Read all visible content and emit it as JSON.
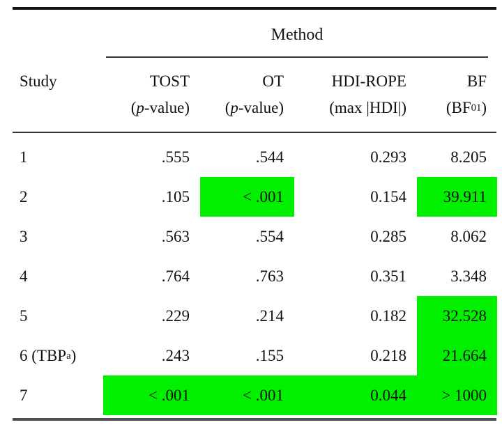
{
  "colors": {
    "highlight_green": "#00f000",
    "text": "#111111"
  },
  "table": {
    "span_header": "Method",
    "columns": {
      "study": {
        "label": "Study"
      },
      "tost": {
        "label": "TOST",
        "sub_pre": "(",
        "sub_it": "p",
        "sub_post": "-value)"
      },
      "ot": {
        "label": "OT",
        "sub_pre": "(",
        "sub_it": "p",
        "sub_post": "-value)"
      },
      "hdi": {
        "label": "HDI-ROPE",
        "sub": "(max |HDI|)"
      },
      "bf": {
        "label": "BF",
        "sub_pre": "(BF",
        "sub_sub": "01",
        "sub_post": ")"
      }
    },
    "rows": [
      {
        "study": "1",
        "tost": ".555",
        "ot": ".544",
        "hdi": "0.293",
        "bf": "8.205",
        "hl": []
      },
      {
        "study": "2",
        "tost": ".105",
        "ot": "< .001",
        "hdi": "0.154",
        "bf": "39.911",
        "hl": [
          "ot",
          "bf"
        ]
      },
      {
        "study": "3",
        "tost": ".563",
        "ot": ".554",
        "hdi": "0.285",
        "bf": "8.062",
        "hl": []
      },
      {
        "study": "4",
        "tost": ".764",
        "ot": ".763",
        "hdi": "0.351",
        "bf": "3.348",
        "hl": []
      },
      {
        "study": "5",
        "tost": ".229",
        "ot": ".214",
        "hdi": "0.182",
        "bf": "32.528",
        "hl": [
          "bf"
        ]
      },
      {
        "study_pre": "6 (TBP",
        "study_sup": "a",
        "study_post": ")",
        "tost": ".243",
        "ot": ".155",
        "hdi": "0.218",
        "bf": "21.664",
        "hl": [
          "bf"
        ]
      },
      {
        "study": "7",
        "tost": "< .001",
        "ot": "< .001",
        "hdi": "0.044",
        "bf": "> 1000",
        "hl": [
          "tost",
          "ot",
          "hdi",
          "bf"
        ]
      }
    ]
  }
}
